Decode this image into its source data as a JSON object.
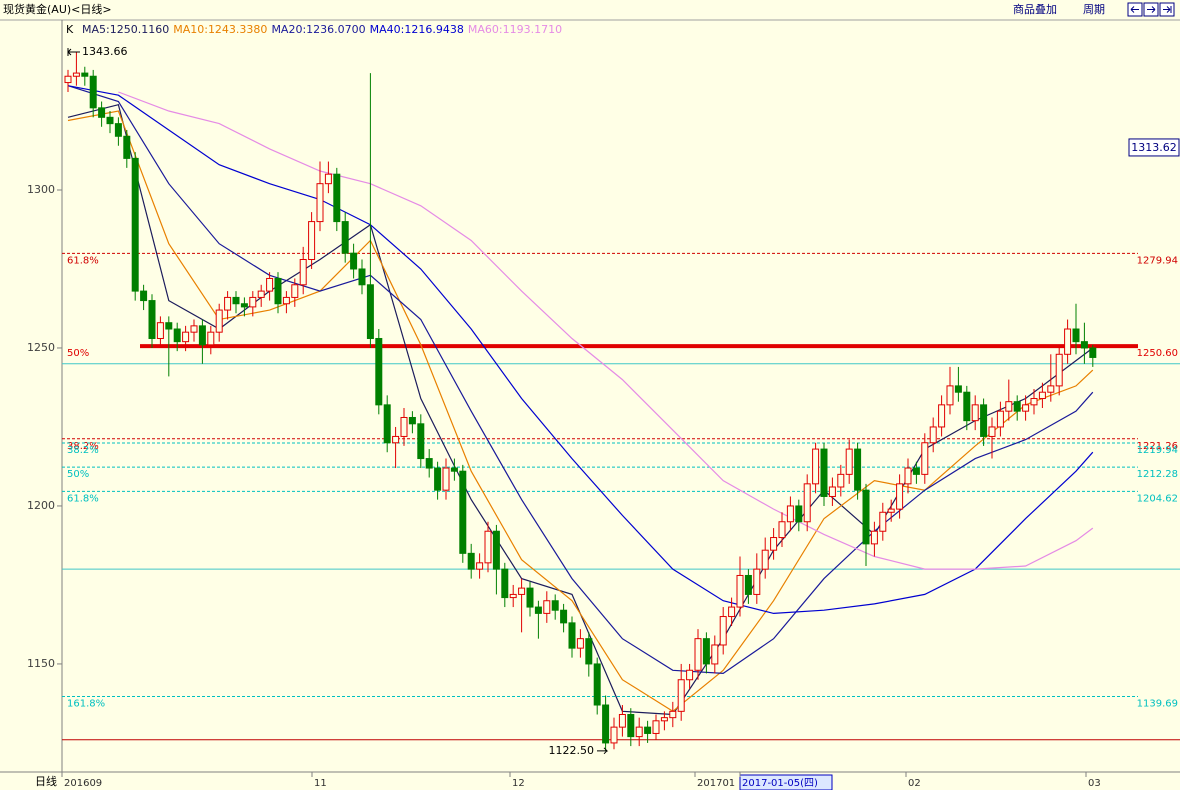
{
  "chart_data": {
    "type": "candlestick",
    "title": "现货黄金(AU)<日线>",
    "toolbar": [
      "商品叠加",
      "周期"
    ],
    "indicator": "K",
    "period_label": "日线",
    "ylim": [
      1115.8,
      1353.8
    ],
    "yticks": [
      1150,
      1200,
      1250,
      1300
    ],
    "x_labels": [
      "201609",
      "11",
      "12",
      "201701",
      "2017-01-05(四)",
      "02",
      "03"
    ],
    "up_color": "#e00000",
    "down_color": "#008000",
    "open": [
      1334,
      1336,
      1337,
      1336,
      1326,
      1323,
      1321,
      1317,
      1310,
      1268,
      1265,
      1253,
      1258,
      1256,
      1252,
      1255,
      1257,
      1251,
      1255,
      1262,
      1266,
      1264,
      1263,
      1266,
      1268,
      1272,
      1264,
      1266,
      1270,
      1278,
      1290,
      1302,
      1305,
      1290,
      1280,
      1275,
      1270,
      1253,
      1232,
      1220,
      1222,
      1228,
      1226,
      1215,
      1212,
      1205,
      1212,
      1211,
      1185,
      1180,
      1182,
      1192,
      1180,
      1171,
      1172,
      1174,
      1168,
      1166,
      1170,
      1167,
      1163,
      1155,
      1158,
      1150,
      1137,
      1125,
      1130,
      1134,
      1127,
      1130,
      1128,
      1132,
      1133,
      1135,
      1145,
      1148,
      1158,
      1150,
      1156,
      1165,
      1168,
      1178,
      1172,
      1180,
      1186,
      1190,
      1195,
      1200,
      1195,
      1207,
      1218,
      1203,
      1206,
      1210,
      1218,
      1205,
      1188,
      1192,
      1198,
      1199,
      1207,
      1212,
      1210,
      1220,
      1225,
      1232,
      1238,
      1236,
      1227,
      1232,
      1222,
      1225,
      1230,
      1233,
      1230,
      1232,
      1234,
      1236,
      1238,
      1248,
      1256,
      1252,
      1250
    ],
    "high": [
      1338,
      1343.66,
      1339,
      1338,
      1328,
      1325,
      1323,
      1319,
      1312,
      1270,
      1267,
      1260,
      1260,
      1258,
      1257,
      1259,
      1259,
      1257,
      1264,
      1268,
      1268,
      1266,
      1268,
      1270,
      1274,
      1274,
      1268,
      1272,
      1282,
      1293,
      1309,
      1309,
      1307,
      1293,
      1283,
      1278,
      1337,
      1256,
      1235,
      1225,
      1231,
      1230,
      1229,
      1218,
      1214,
      1215,
      1215,
      1213,
      1188,
      1185,
      1195,
      1194,
      1182,
      1175,
      1177,
      1176,
      1170,
      1173,
      1172,
      1169,
      1165,
      1161,
      1160,
      1152,
      1140,
      1133,
      1137,
      1136,
      1133,
      1132,
      1134,
      1135,
      1138,
      1150,
      1150,
      1161,
      1160,
      1159,
      1168,
      1171,
      1184,
      1180,
      1185,
      1190,
      1193,
      1198,
      1203,
      1202,
      1210,
      1220,
      1220,
      1209,
      1213,
      1221,
      1220,
      1207,
      1195,
      1201,
      1202,
      1210,
      1215,
      1214,
      1223,
      1228,
      1235,
      1244,
      1244,
      1238,
      1235,
      1234,
      1228,
      1233,
      1240,
      1235,
      1235,
      1237,
      1239,
      1248,
      1251,
      1259,
      1264,
      1258,
      1251
    ],
    "low": [
      1331,
      1333,
      1333,
      1323,
      1320,
      1318,
      1314,
      1307,
      1265,
      1262,
      1250,
      1250,
      1241,
      1249,
      1249,
      1252,
      1245,
      1248,
      1252,
      1259,
      1261,
      1260,
      1260,
      1263,
      1265,
      1261,
      1261,
      1263,
      1267,
      1275,
      1287,
      1299,
      1287,
      1277,
      1272,
      1267,
      1250,
      1229,
      1217,
      1212,
      1219,
      1223,
      1212,
      1209,
      1202,
      1202,
      1208,
      1182,
      1177,
      1177,
      1179,
      1172,
      1168,
      1168,
      1160,
      1165,
      1158,
      1163,
      1164,
      1160,
      1152,
      1152,
      1146,
      1134,
      1122.5,
      1123,
      1127,
      1124,
      1124,
      1125,
      1126,
      1129,
      1130,
      1132,
      1142,
      1145,
      1147,
      1147,
      1153,
      1162,
      1165,
      1169,
      1169,
      1177,
      1183,
      1187,
      1192,
      1192,
      1192,
      1204,
      1200,
      1200,
      1203,
      1207,
      1202,
      1181,
      1184,
      1189,
      1195,
      1196,
      1204,
      1207,
      1207,
      1217,
      1222,
      1229,
      1233,
      1224,
      1224,
      1219,
      1215,
      1222,
      1227,
      1227,
      1227,
      1229,
      1231,
      1233,
      1235,
      1245,
      1248,
      1245,
      1244
    ],
    "close": [
      1336,
      1337,
      1336,
      1326,
      1323,
      1321,
      1317,
      1310,
      1268,
      1265,
      1253,
      1258,
      1256,
      1252,
      1255,
      1257,
      1251,
      1255,
      1262,
      1266,
      1264,
      1263,
      1266,
      1268,
      1272,
      1264,
      1266,
      1270,
      1278,
      1290,
      1302,
      1305,
      1290,
      1280,
      1275,
      1270,
      1253,
      1232,
      1220,
      1222,
      1228,
      1226,
      1215,
      1212,
      1205,
      1212,
      1211,
      1185,
      1180,
      1182,
      1192,
      1180,
      1171,
      1172,
      1174,
      1168,
      1166,
      1170,
      1167,
      1163,
      1155,
      1158,
      1150,
      1137,
      1125,
      1130,
      1134,
      1127,
      1130,
      1128,
      1132,
      1133,
      1135,
      1145,
      1148,
      1158,
      1150,
      1156,
      1165,
      1168,
      1178,
      1172,
      1180,
      1186,
      1190,
      1195,
      1200,
      1195,
      1207,
      1218,
      1203,
      1206,
      1210,
      1218,
      1205,
      1188,
      1192,
      1198,
      1199,
      1207,
      1212,
      1210,
      1220,
      1225,
      1232,
      1238,
      1236,
      1227,
      1232,
      1222,
      1225,
      1230,
      1233,
      1230,
      1232,
      1234,
      1236,
      1238,
      1248,
      1256,
      1252,
      1250,
      1247
    ],
    "series": [
      {
        "name": "MA5:1250.1160",
        "color": "#1c1c5c",
        "x": [
          0,
          6,
          12,
          18,
          24,
          30,
          36,
          42,
          48,
          54,
          60,
          66,
          72,
          78,
          84,
          90,
          96,
          102,
          108,
          114,
          120,
          122
        ],
        "values": [
          1323,
          1327,
          1265,
          1256,
          1268,
          1278,
          1289,
          1234,
          1202,
          1177,
          1172,
          1135,
          1134,
          1158,
          1186,
          1205,
          1191,
          1218,
          1227,
          1234,
          1246,
          1250
        ]
      },
      {
        "name": "MA10:1243.3380",
        "color": "#e88000",
        "x": [
          0,
          6,
          12,
          18,
          24,
          30,
          36,
          42,
          48,
          54,
          60,
          66,
          72,
          78,
          84,
          90,
          96,
          102,
          108,
          114,
          120,
          122
        ],
        "values": [
          1322,
          1325,
          1283,
          1259,
          1262,
          1268,
          1284,
          1251,
          1211,
          1183,
          1170,
          1145,
          1135,
          1148,
          1170,
          1196,
          1208,
          1205,
          1219,
          1232,
          1238,
          1243
        ]
      },
      {
        "name": "MA20:1236.0700",
        "color": "#1a1a9a",
        "x": [
          0,
          6,
          12,
          18,
          24,
          30,
          36,
          42,
          48,
          54,
          60,
          66,
          72,
          78,
          84,
          90,
          96,
          102,
          108,
          114,
          120,
          122
        ],
        "values": [
          1333,
          1328,
          1302,
          1283,
          1273,
          1268,
          1273,
          1259,
          1230,
          1202,
          1177,
          1158,
          1148,
          1147,
          1158,
          1177,
          1192,
          1205,
          1215,
          1221,
          1230,
          1236
        ]
      },
      {
        "name": "MA40:1216.9438",
        "color": "#0000d0",
        "x": [
          0,
          6,
          12,
          18,
          24,
          30,
          36,
          42,
          48,
          54,
          60,
          66,
          72,
          78,
          84,
          90,
          96,
          102,
          108,
          114,
          120,
          122
        ],
        "values": [
          1333,
          1330,
          1319,
          1308,
          1302,
          1297,
          1289,
          1275,
          1256,
          1234,
          1215,
          1197,
          1180,
          1170,
          1166,
          1167,
          1169,
          1172,
          1180,
          1196,
          1211,
          1217
        ]
      },
      {
        "name": "MA60:1193.1710",
        "color": "#e58be5",
        "x": [
          6,
          12,
          18,
          24,
          30,
          36,
          42,
          48,
          54,
          60,
          66,
          72,
          78,
          84,
          90,
          96,
          102,
          108,
          114,
          120,
          122
        ],
        "values": [
          1331,
          1325,
          1321,
          1313,
          1306,
          1302,
          1295,
          1284,
          1268,
          1253,
          1240,
          1224,
          1208,
          1199,
          1191,
          1184,
          1180,
          1180,
          1181,
          1189,
          1193
        ]
      }
    ],
    "reference_lines": [
      {
        "value": 1279.94,
        "label": "61.8%",
        "color": "#d00000",
        "style": "dashed"
      },
      {
        "value": 1250.6,
        "value_label": "1250.60",
        "label": "50%",
        "color": "#e00000",
        "style": "thick"
      },
      {
        "value": 1221.26,
        "label": "38.2%",
        "color": "#d00000",
        "style": "dashed"
      },
      {
        "value": 1219.94,
        "label": "38.2%",
        "color": "#00c0c0",
        "style": "dashed"
      },
      {
        "value": 1212.28,
        "label": "50%",
        "color": "#00c0c0",
        "style": "dashed"
      },
      {
        "value": 1204.62,
        "label": "61.8%",
        "color": "#00c0c0",
        "style": "dashed"
      },
      {
        "value": 1139.69,
        "label": "161.8%",
        "color": "#00c0c0",
        "style": "dashed"
      },
      {
        "value": 1245,
        "color": "#40c8c8",
        "style": "solid"
      },
      {
        "value": 1180,
        "color": "#40c8c8",
        "style": "solid"
      },
      {
        "value": 1126,
        "color": "#c00000",
        "style": "solid"
      }
    ],
    "annotations": [
      {
        "value": 1343.66
      },
      {
        "value": 1122.5,
        "label": "1122.50"
      }
    ],
    "cursor_price": 1313.62
  }
}
